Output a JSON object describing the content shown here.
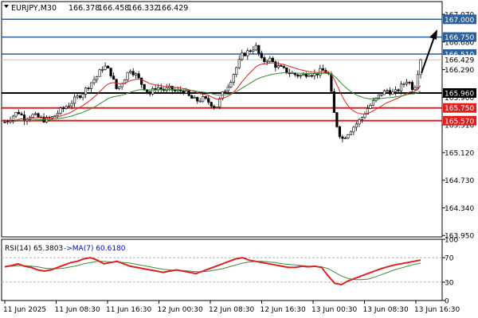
{
  "chart_data": {
    "type": "candlestick",
    "header": {
      "symbol": "EURJPY,M30",
      "ohlc": [
        "166.378",
        "166.458",
        "166.332",
        "166.429"
      ]
    },
    "price_axis": {
      "ylim": [
        163.93,
        167.25
      ],
      "ticks": [
        "167.070",
        "166.680",
        "166.290",
        "165.900",
        "165.510",
        "165.120",
        "164.730",
        "164.340",
        "163.950"
      ]
    },
    "time_axis": {
      "labels": [
        "11 Jun 2025",
        "11 Jun 08:30",
        "11 Jun 16:30",
        "12 Jun 00:30",
        "12 Jun 08:30",
        "12 Jun 16:30",
        "13 Jun 00:30",
        "13 Jun 08:30",
        "13 Jun 16:30"
      ]
    },
    "levels": [
      {
        "value": 167.0,
        "label": "167.000",
        "color": "#2f5f99"
      },
      {
        "value": 166.75,
        "label": "166.750",
        "color": "#2f5f99"
      },
      {
        "value": 166.51,
        "label": "166.510",
        "color": "#2f5f99"
      },
      {
        "value": 165.96,
        "label": "165.960",
        "color": "#000000"
      },
      {
        "value": 165.75,
        "label": "165.750",
        "color": "#e02020"
      },
      {
        "value": 165.57,
        "label": "165.570",
        "color": "#e02020"
      }
    ],
    "current_price": {
      "value": 166.429,
      "label": "166.429"
    },
    "close_path": [
      165.55,
      165.62,
      165.7,
      165.6,
      165.65,
      165.62,
      165.58,
      165.6,
      165.68,
      165.75,
      165.82,
      165.9,
      165.98,
      166.1,
      166.2,
      166.35,
      166.25,
      166.0,
      166.15,
      166.3,
      166.2,
      166.05,
      165.95,
      166.05,
      166.0,
      166.02,
      165.98,
      166.0,
      165.9,
      165.85,
      165.88,
      165.83,
      165.75,
      165.95,
      166.1,
      166.3,
      166.5,
      166.55,
      166.62,
      166.4,
      166.45,
      166.35,
      166.3,
      166.25,
      166.22,
      166.2,
      166.25,
      166.22,
      166.28,
      166.25,
      165.6,
      165.3,
      165.4,
      165.5,
      165.6,
      165.75,
      165.85,
      165.95,
      166.0,
      165.95,
      166.05,
      166.15,
      166.0,
      166.45
    ],
    "rsi": {
      "label": "RSI(14) 65.3803",
      "ma_label": "->MA(7) 60.6180",
      "ylim": [
        0,
        100
      ],
      "ticks": [
        "100",
        "70",
        "30",
        "0"
      ],
      "levels": [
        70,
        30
      ],
      "values": [
        55,
        57,
        60,
        56,
        54,
        50,
        48,
        50,
        54,
        58,
        62,
        64,
        68,
        70,
        66,
        60,
        62,
        64,
        60,
        56,
        54,
        52,
        50,
        48,
        46,
        48,
        50,
        48,
        46,
        44,
        48,
        52,
        56,
        60,
        64,
        68,
        70,
        66,
        64,
        62,
        60,
        58,
        56,
        54,
        54,
        56,
        55,
        56,
        54,
        40,
        28,
        26,
        32,
        36,
        40,
        44,
        48,
        52,
        55,
        58,
        60,
        62,
        64,
        66
      ],
      "ma_values": [
        56,
        56,
        57,
        57,
        56,
        55,
        53,
        52,
        52,
        53,
        55,
        57,
        60,
        62,
        64,
        64,
        63,
        63,
        62,
        61,
        59,
        57,
        55,
        53,
        51,
        50,
        49,
        49,
        48,
        47,
        47,
        48,
        50,
        52,
        55,
        58,
        61,
        63,
        64,
        64,
        63,
        62,
        60,
        59,
        58,
        57,
        56,
        56,
        55,
        52,
        46,
        40,
        36,
        34,
        34,
        35,
        38,
        42,
        46,
        50,
        53,
        56,
        59,
        61
      ],
      "colors": {
        "rsi": "#dd2222",
        "ma": "#3c8c3c",
        "ma_text": "#0000cc"
      }
    },
    "colors": {
      "candle": "#000000",
      "ema_fast": "#dd2222",
      "ema_slow": "#2e8b2e",
      "arrow": "#000000"
    }
  }
}
